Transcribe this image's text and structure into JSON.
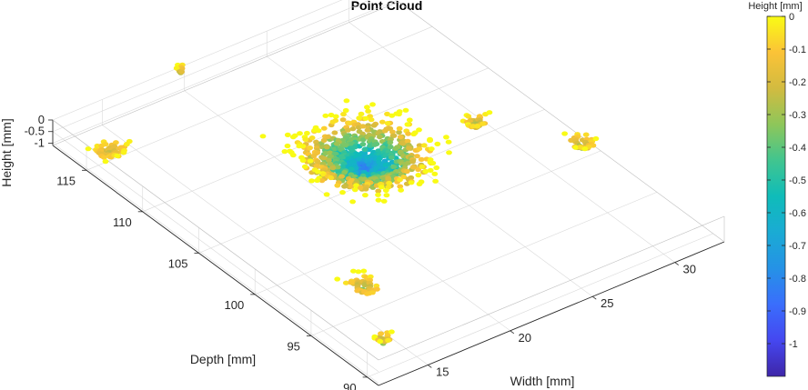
{
  "chart_data": {
    "type": "scatter",
    "title": "Point Cloud",
    "xlabel": "Width [mm]",
    "ylabel": "Depth [mm]",
    "zlabel": "Height [mm]",
    "x_ticks": [
      15,
      20,
      25,
      30
    ],
    "y_ticks": [
      90,
      95,
      100,
      105,
      110,
      115
    ],
    "z_ticks": [
      "0",
      "-0.5",
      "-1"
    ],
    "xlim": [
      12,
      33
    ],
    "ylim": [
      89,
      118
    ],
    "zlim": [
      -1.1,
      0
    ],
    "grid": true,
    "colormap": "parula",
    "colorbar": {
      "label": "Height [mm]",
      "range": [
        -1.1,
        0
      ],
      "ticks": [
        "0",
        "-0.1",
        "-0.2",
        "-0.3",
        "-0.4",
        "-0.5",
        "-0.6",
        "-0.7",
        "-0.8",
        "-0.9",
        "-1"
      ]
    },
    "clusters": [
      {
        "x": 22.5,
        "y": 105.5,
        "z_min": -1.0,
        "z_max": 0.0,
        "n": 900,
        "spread_x": 4.2,
        "spread_y": 5.0
      },
      {
        "x": 12.8,
        "y": 114.0,
        "z_min": -0.3,
        "z_max": 0.0,
        "n": 60,
        "spread_x": 1.4,
        "spread_y": 1.2
      },
      {
        "x": 19.8,
        "y": 118.0,
        "z_min": -0.3,
        "z_max": 0.0,
        "n": 12,
        "spread_x": 0.4,
        "spread_y": 0.3
      },
      {
        "x": 28.5,
        "y": 104.5,
        "z_min": -0.4,
        "z_max": 0.0,
        "n": 40,
        "spread_x": 0.9,
        "spread_y": 0.9
      },
      {
        "x": 31.5,
        "y": 99.5,
        "z_min": -0.4,
        "z_max": 0.0,
        "n": 50,
        "spread_x": 0.9,
        "spread_y": 1.2
      },
      {
        "x": 15.5,
        "y": 95.5,
        "z_min": -0.4,
        "z_max": 0.0,
        "n": 60,
        "spread_x": 1.0,
        "spread_y": 1.5
      },
      {
        "x": 13.5,
        "y": 90.8,
        "z_min": -0.4,
        "z_max": 0.0,
        "n": 30,
        "spread_x": 0.6,
        "spread_y": 0.8
      }
    ]
  }
}
